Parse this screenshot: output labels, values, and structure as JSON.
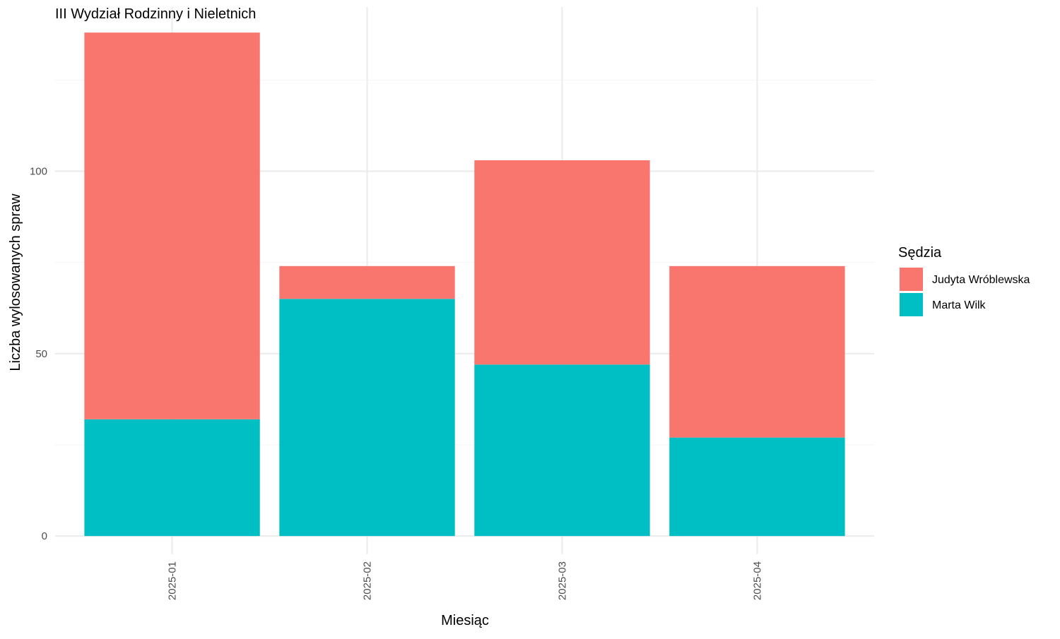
{
  "chart_data": {
    "type": "bar",
    "stacked": true,
    "title": "III Wydział Rodzinny i Nieletnich",
    "xlabel": "Miesiąc",
    "ylabel": "Liczba wylosowanych spraw",
    "categories": [
      "2025-01",
      "2025-02",
      "2025-03",
      "2025-04"
    ],
    "series": [
      {
        "name": "Marta Wilk",
        "color": "#00BFC4",
        "values": [
          32,
          65,
          47,
          27
        ]
      },
      {
        "name": "Judyta Wróblewska",
        "color": "#F8766D",
        "values": [
          106,
          9,
          56,
          47
        ]
      }
    ],
    "ylim": [
      -5,
      145
    ],
    "yticks": [
      0,
      50,
      100
    ],
    "ytick_labels": [
      "0",
      "50",
      "100"
    ],
    "grid": true,
    "legend": {
      "title": "Sędzia",
      "position": "right",
      "order": [
        "Judyta Wróblewska",
        "Marta Wilk"
      ]
    }
  }
}
